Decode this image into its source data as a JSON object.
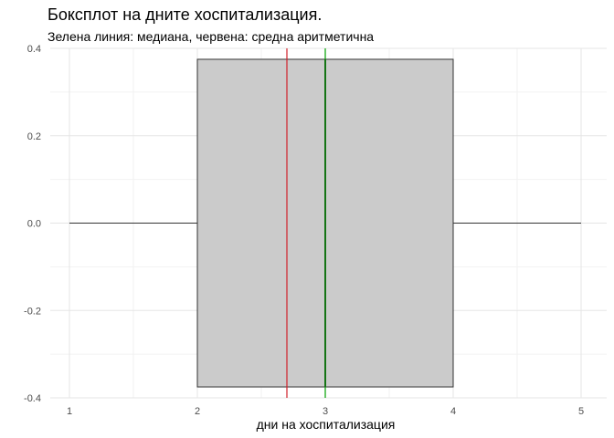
{
  "chart_data": {
    "type": "boxplot",
    "title": "Боксплот на дните хоспитализация.",
    "subtitle": "Зелена линия: медиана, червена: средна аритметична",
    "xlabel": "дни на хоспитализация",
    "ylabel": "",
    "xlim": [
      0.85,
      5.2
    ],
    "ylim": [
      -0.4,
      0.4
    ],
    "x_ticks": [
      1,
      2,
      3,
      4,
      5
    ],
    "y_ticks": [
      -0.4,
      -0.2,
      0.0,
      0.2,
      0.4
    ],
    "y_tick_labels": [
      "-0.4",
      "-0.2",
      "0.0",
      "0.2",
      "0.4"
    ],
    "box": {
      "min": 1,
      "q1": 2,
      "median": 3,
      "q3": 4,
      "max": 5,
      "y_center": 0.0,
      "half_height": 0.375
    },
    "mean": 2.7,
    "grid": true,
    "colors": {
      "box_fill": "#cbcbcb",
      "box_stroke": "#333333",
      "median_line": "#00a000",
      "mean_line": "#d0202a",
      "grid_major": "#e5e5e5",
      "grid_minor": "#f2f2f2",
      "tick_text": "#4d4d4d"
    }
  }
}
